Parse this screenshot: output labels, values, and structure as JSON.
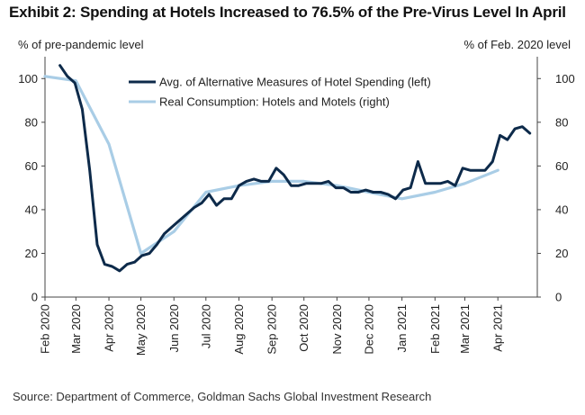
{
  "title": "Exhibit 2: Spending at Hotels Increased to 76.5% of the Pre-Virus Level In April",
  "left_axis_unit": "% of pre-pandemic  level",
  "right_axis_unit": "% of Feb. 2020 level",
  "source": "Source: Department of Commerce, Goldman Sachs Global Investment Research",
  "colors": {
    "dark_series": "#0d2a4a",
    "light_series": "#a9cde6",
    "axis": "#444444"
  },
  "chart_data": {
    "type": "line",
    "ylim_left": [
      0,
      110
    ],
    "ylim_right": [
      0,
      110
    ],
    "yticks_left": [
      0,
      20,
      40,
      60,
      80,
      100
    ],
    "yticks_right": [
      0,
      20,
      40,
      60,
      80,
      100
    ],
    "xticks": [
      "2020-02-01",
      "2020-03-01",
      "2020-04-01",
      "2020-05-01",
      "2020-06-01",
      "2020-07-01",
      "2020-08-01",
      "2020-09-01",
      "2020-10-01",
      "2020-11-01",
      "2020-12-01",
      "2021-01-01",
      "2021-02-01",
      "2021-03-01",
      "2021-04-01"
    ],
    "xtick_labels": [
      "Feb 2020",
      "Mar 2020",
      "Apr 2020",
      "May 2020",
      "Jun 2020",
      "Jul 2020",
      "Aug 2020",
      "Sep 2020",
      "Oct 2020",
      "Nov 2020",
      "Dec 2020",
      "Jan 2021",
      "Feb 2021",
      "Mar 2021",
      "Apr 2021"
    ],
    "xlim": [
      "2020-02-01",
      "2021-05-08"
    ],
    "grid": false,
    "legend_position": "top-center",
    "series": [
      {
        "name": "Avg. of Alternative Measures of Hotel Spending (left)",
        "axis": "left",
        "color": "#0d2a4a",
        "points": [
          [
            "2020-02-15",
            106
          ],
          [
            "2020-02-22",
            101
          ],
          [
            "2020-02-29",
            98
          ],
          [
            "2020-03-07",
            86
          ],
          [
            "2020-03-14",
            58
          ],
          [
            "2020-03-21",
            24
          ],
          [
            "2020-03-28",
            15
          ],
          [
            "2020-04-04",
            14
          ],
          [
            "2020-04-11",
            12
          ],
          [
            "2020-04-18",
            15
          ],
          [
            "2020-04-25",
            16
          ],
          [
            "2020-05-02",
            19
          ],
          [
            "2020-05-09",
            20
          ],
          [
            "2020-05-16",
            24
          ],
          [
            "2020-05-23",
            29
          ],
          [
            "2020-05-30",
            32
          ],
          [
            "2020-06-06",
            35
          ],
          [
            "2020-06-13",
            38
          ],
          [
            "2020-06-20",
            41
          ],
          [
            "2020-06-27",
            43
          ],
          [
            "2020-07-04",
            47
          ],
          [
            "2020-07-11",
            42
          ],
          [
            "2020-07-18",
            45
          ],
          [
            "2020-07-25",
            45
          ],
          [
            "2020-08-01",
            51
          ],
          [
            "2020-08-08",
            53
          ],
          [
            "2020-08-15",
            54
          ],
          [
            "2020-08-22",
            53
          ],
          [
            "2020-08-29",
            53
          ],
          [
            "2020-09-05",
            59
          ],
          [
            "2020-09-12",
            56
          ],
          [
            "2020-09-19",
            51
          ],
          [
            "2020-09-26",
            51
          ],
          [
            "2020-10-03",
            52
          ],
          [
            "2020-10-10",
            52
          ],
          [
            "2020-10-17",
            52
          ],
          [
            "2020-10-24",
            53
          ],
          [
            "2020-10-31",
            50
          ],
          [
            "2020-11-07",
            50
          ],
          [
            "2020-11-14",
            48
          ],
          [
            "2020-11-21",
            48
          ],
          [
            "2020-11-28",
            49
          ],
          [
            "2020-12-05",
            48
          ],
          [
            "2020-12-12",
            48
          ],
          [
            "2020-12-19",
            47
          ],
          [
            "2020-12-26",
            45
          ],
          [
            "2021-01-02",
            49
          ],
          [
            "2021-01-09",
            50
          ],
          [
            "2021-01-16",
            62
          ],
          [
            "2021-01-23",
            52
          ],
          [
            "2021-01-30",
            52
          ],
          [
            "2021-02-06",
            52
          ],
          [
            "2021-02-13",
            53
          ],
          [
            "2021-02-20",
            51
          ],
          [
            "2021-02-27",
            59
          ],
          [
            "2021-03-06",
            58
          ],
          [
            "2021-03-13",
            58
          ],
          [
            "2021-03-20",
            58
          ],
          [
            "2021-03-27",
            62
          ],
          [
            "2021-04-03",
            74
          ],
          [
            "2021-04-10",
            72
          ],
          [
            "2021-04-17",
            77
          ],
          [
            "2021-04-24",
            78
          ],
          [
            "2021-05-01",
            75
          ]
        ]
      },
      {
        "name": "Real Consumption: Hotels and Motels (right)",
        "axis": "right",
        "color": "#a9cde6",
        "points": [
          [
            "2020-02-01",
            101
          ],
          [
            "2020-03-01",
            99
          ],
          [
            "2020-04-01",
            70
          ],
          [
            "2020-05-01",
            20
          ],
          [
            "2020-06-01",
            30
          ],
          [
            "2020-07-01",
            48
          ],
          [
            "2020-08-01",
            51
          ],
          [
            "2020-09-01",
            53
          ],
          [
            "2020-10-01",
            53
          ],
          [
            "2020-11-01",
            51
          ],
          [
            "2020-12-01",
            48
          ],
          [
            "2021-01-01",
            45
          ],
          [
            "2021-02-01",
            48
          ],
          [
            "2021-03-01",
            52
          ],
          [
            "2021-04-01",
            58
          ]
        ]
      }
    ]
  }
}
